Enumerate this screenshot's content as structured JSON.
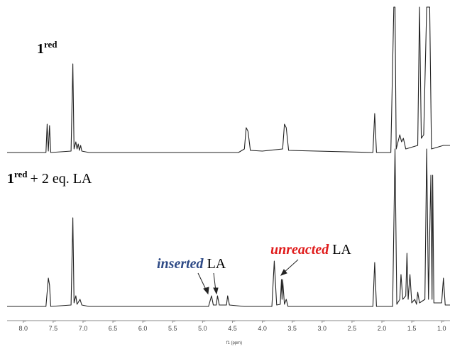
{
  "chart_data": {
    "type": "line",
    "xlabel": "f1 (ppm)",
    "xlim": [
      8.27,
      0.86
    ],
    "xticks": [
      {
        "value": 8,
        "label": "8.0"
      },
      7.5,
      {
        "value": 7,
        "label": "7.0"
      },
      6.5,
      {
        "value": 6,
        "label": "6.0"
      },
      5.5,
      {
        "value": 5,
        "label": "5.0"
      },
      4.5,
      {
        "value": 4,
        "label": "4.0"
      },
      3.5,
      {
        "value": 3,
        "label": "3.0"
      },
      2.5,
      {
        "value": 2,
        "label": "2.0"
      },
      1.5,
      {
        "value": 1,
        "label": "1.0"
      }
    ],
    "series": [
      {
        "name": "1",
        "name_sup": "red",
        "color": "#222222",
        "x": [
          8.27,
          7.62,
          7.6,
          7.58,
          7.56,
          7.54,
          7.2,
          7.17,
          7.15,
          7.12,
          7.1,
          7.08,
          7.06,
          7.04,
          7.02,
          6.9,
          4.4,
          4.3,
          4.27,
          4.24,
          4.2,
          4.0,
          3.66,
          3.63,
          3.6,
          3.56,
          2.15,
          2.12,
          2.09,
          1.85,
          1.8,
          1.78,
          1.76,
          1.7,
          1.67,
          1.64,
          1.6,
          1.4,
          1.37,
          1.34,
          1.3,
          1.25,
          1.22,
          1.2,
          1.17,
          1.05,
          0.97,
          0.86
        ],
        "values": [
          0,
          0,
          40,
          2,
          38,
          0,
          2,
          125,
          5,
          15,
          5,
          12,
          3,
          10,
          2,
          0,
          0,
          5,
          35,
          30,
          3,
          2,
          5,
          40,
          35,
          3,
          0,
          55,
          0,
          0,
          205,
          205,
          5,
          25,
          15,
          20,
          5,
          10,
          205,
          20,
          25,
          205,
          205,
          205,
          5,
          8,
          10,
          10
        ]
      },
      {
        "name": "1",
        "name_sup": "red",
        "name_suffix": "+ 2 eq. LA",
        "color": "#222222",
        "x": [
          8.27,
          7.62,
          7.58,
          7.56,
          7.54,
          7.2,
          7.17,
          7.15,
          7.12,
          7.1,
          7.05,
          7.02,
          6.9,
          4.9,
          4.85,
          4.82,
          4.77,
          4.75,
          4.72,
          4.6,
          4.58,
          4.55,
          4.3,
          3.84,
          3.8,
          3.76,
          3.7,
          3.68,
          3.67,
          3.66,
          3.63,
          3.6,
          3.57,
          2.15,
          2.12,
          2.09,
          1.82,
          1.78,
          1.75,
          1.7,
          1.68,
          1.65,
          1.6,
          1.58,
          1.56,
          1.53,
          1.5,
          1.45,
          1.42,
          1.4,
          1.37,
          1.28,
          1.25,
          1.22,
          1.2,
          1.18,
          1.16,
          1.15,
          1.13,
          1.0,
          0.97,
          0.94,
          0.86
        ],
        "values": [
          0,
          0,
          40,
          30,
          0,
          2,
          125,
          5,
          15,
          3,
          10,
          2,
          0,
          0,
          15,
          2,
          2,
          15,
          2,
          2,
          15,
          2,
          0,
          0,
          64,
          2,
          3,
          38,
          10,
          38,
          3,
          10,
          0,
          0,
          62,
          0,
          0,
          222,
          3,
          10,
          45,
          10,
          15,
          75,
          10,
          45,
          5,
          10,
          3,
          20,
          5,
          10,
          222,
          10,
          100,
          185,
          10,
          185,
          5,
          5,
          40,
          2,
          2
        ]
      }
    ],
    "annotations": [
      {
        "emph": "inserted",
        "text": "LA",
        "color": "#2e4a86"
      },
      {
        "emph": "unreacted",
        "text": "LA",
        "color": "#e01b1b"
      }
    ]
  }
}
